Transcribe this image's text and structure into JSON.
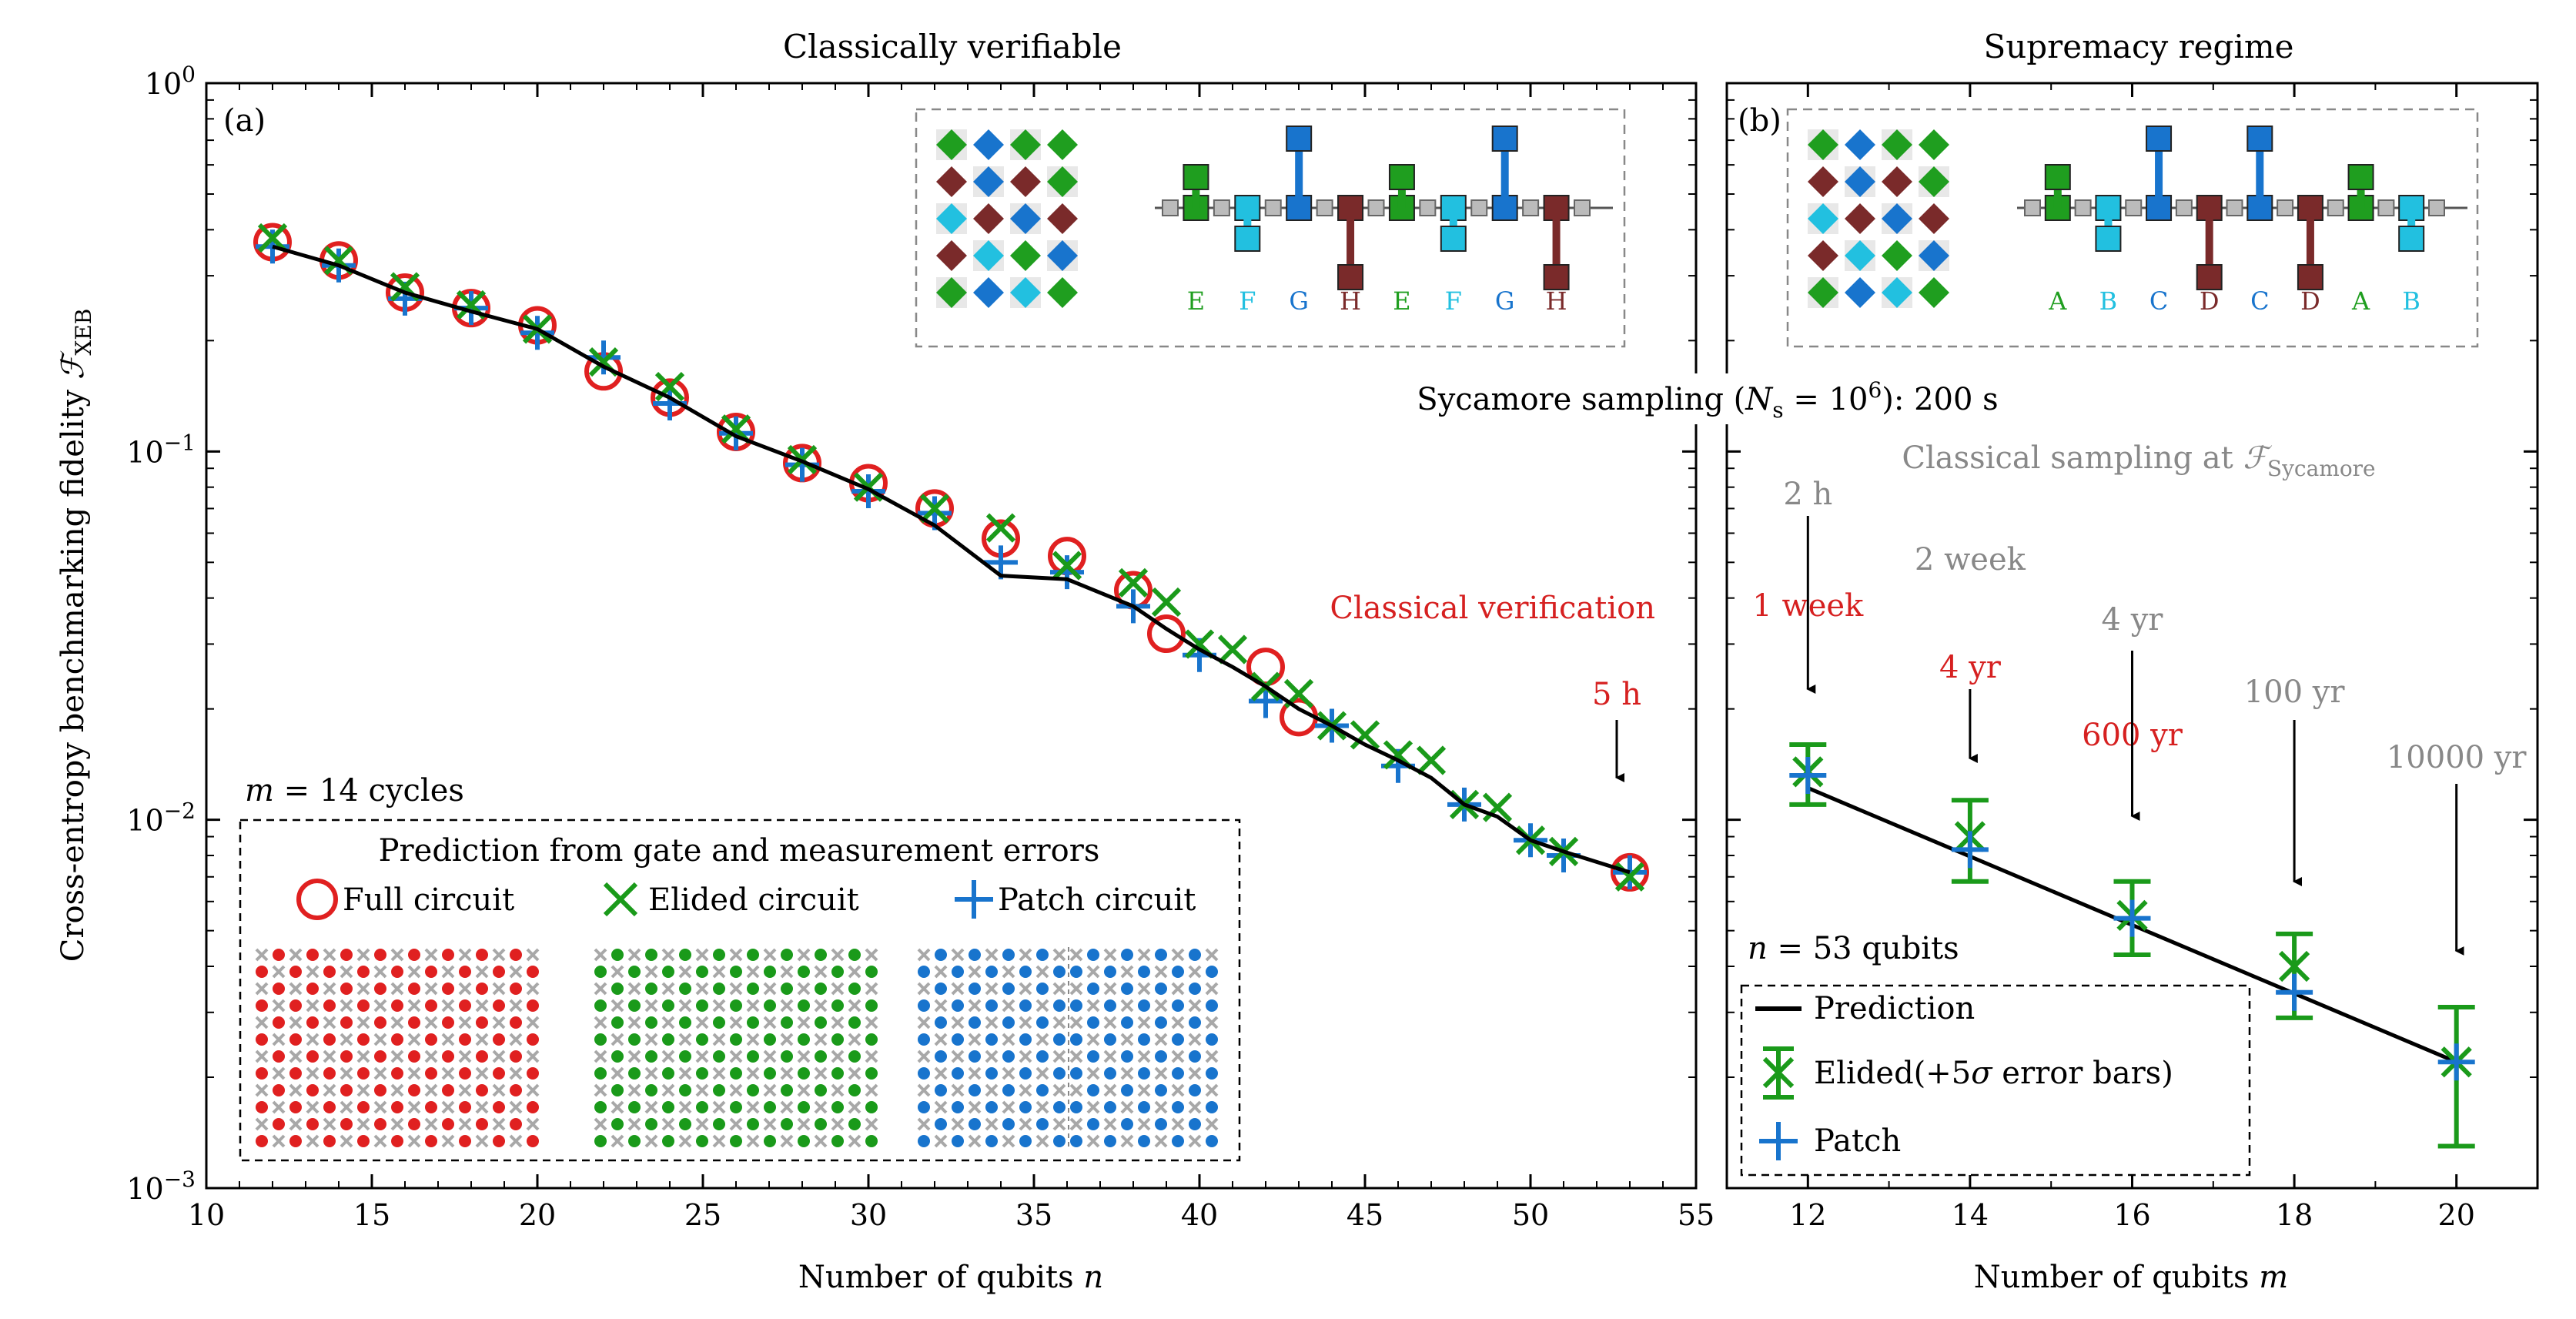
{
  "panel_a": {
    "title": "Classically verifiable",
    "label": "(a)",
    "xlabel": "Number of qubits n",
    "ylabel": "Cross-entropy benchmarking fidelity F_XEB",
    "cycles_label": "m = 14 cycles",
    "classical_verification_label": "Classical verification",
    "verification_time": "5 h",
    "legend_title": "Prediction from gate and measurement errors",
    "legend_full": "Full circuit",
    "legend_elided": "Elided circuit",
    "legend_patch": "Patch circuit",
    "inset_letters": [
      "E",
      "F",
      "G",
      "H",
      "E",
      "F",
      "G",
      "H"
    ]
  },
  "panel_b": {
    "title": "Supremacy regime",
    "label": "(b)",
    "xlabel": "Number of qubits m",
    "qubits_label": "n = 53 qubits",
    "sycamore_sampling": "Sycamore sampling (N_s = 10^6): 200 s",
    "classical_sampling": "Classical sampling at F_Sycamore",
    "legend_prediction": "Prediction",
    "legend_elided": "Elided(+5σ error bars)",
    "legend_patch": "Patch",
    "inset_letters": [
      "A",
      "B",
      "C",
      "D",
      "C",
      "D",
      "A",
      "B"
    ],
    "time_labels": [
      {
        "grey": "2 h",
        "red": "1 week"
      },
      {
        "grey": "2 week",
        "red": "4 yr"
      },
      {
        "grey": "4 yr",
        "red": "600 yr"
      },
      {
        "grey": "100 yr",
        "red": ""
      },
      {
        "grey": "10000 yr",
        "red": ""
      }
    ]
  },
  "colors": {
    "full": "#e02020",
    "elided": "#1a9a1a",
    "patch": "#1874cd",
    "prediction": "#000000",
    "red_text": "#d62020",
    "grey_text": "#888888"
  },
  "chart_data": [
    {
      "type": "scatter",
      "title": "Classically verifiable",
      "xlabel": "Number of qubits n",
      "ylabel": "Cross-entropy benchmarking fidelity F_XEB",
      "xlim": [
        10,
        55
      ],
      "ylim": [
        0.001,
        1
      ],
      "yscale": "log",
      "xticks": [
        10,
        15,
        20,
        25,
        30,
        35,
        40,
        45,
        50,
        55
      ],
      "yticks": [
        "10^-3",
        "10^-2",
        "10^-1",
        "10^0"
      ],
      "series": [
        {
          "name": "Prediction",
          "style": "line",
          "x": [
            12,
            14,
            16,
            18,
            20,
            22,
            24,
            26,
            28,
            30,
            32,
            34,
            36,
            38,
            39,
            40,
            41,
            42,
            43,
            44,
            45,
            46,
            47,
            48,
            49,
            50,
            51,
            53
          ],
          "y": [
            0.36,
            0.32,
            0.27,
            0.24,
            0.215,
            0.17,
            0.14,
            0.11,
            0.094,
            0.079,
            0.063,
            0.046,
            0.045,
            0.038,
            0.033,
            0.029,
            0.026,
            0.023,
            0.02,
            0.018,
            0.016,
            0.0145,
            0.013,
            0.011,
            0.0102,
            0.0088,
            0.0082,
            0.0072
          ]
        },
        {
          "name": "Full circuit",
          "style": "circle",
          "x": [
            12,
            14,
            16,
            18,
            20,
            22,
            24,
            26,
            28,
            30,
            32,
            34,
            36,
            38,
            39,
            42,
            43,
            53
          ],
          "y": [
            0.37,
            0.33,
            0.27,
            0.245,
            0.22,
            0.165,
            0.14,
            0.113,
            0.093,
            0.082,
            0.07,
            0.058,
            0.052,
            0.042,
            0.032,
            0.026,
            0.019,
            0.0072
          ]
        },
        {
          "name": "Elided circuit",
          "style": "x",
          "x": [
            12,
            14,
            16,
            18,
            20,
            22,
            24,
            26,
            28,
            30,
            32,
            34,
            36,
            38,
            39,
            40,
            41,
            42,
            43,
            44,
            45,
            46,
            47,
            48,
            49,
            50,
            51,
            53
          ],
          "y": [
            0.38,
            0.33,
            0.28,
            0.25,
            0.215,
            0.175,
            0.15,
            0.115,
            0.095,
            0.08,
            0.07,
            0.062,
            0.049,
            0.044,
            0.039,
            0.03,
            0.029,
            0.023,
            0.022,
            0.018,
            0.017,
            0.015,
            0.0145,
            0.011,
            0.0108,
            0.0088,
            0.0082,
            0.007
          ]
        },
        {
          "name": "Patch circuit",
          "style": "plus",
          "x": [
            12,
            14,
            16,
            18,
            20,
            22,
            24,
            26,
            28,
            30,
            32,
            34,
            36,
            38,
            40,
            42,
            44,
            46,
            48,
            50,
            51,
            53
          ],
          "y": [
            0.36,
            0.32,
            0.26,
            0.245,
            0.21,
            0.18,
            0.135,
            0.112,
            0.092,
            0.078,
            0.068,
            0.05,
            0.047,
            0.038,
            0.028,
            0.021,
            0.018,
            0.014,
            0.011,
            0.0088,
            0.008,
            0.0072
          ]
        }
      ],
      "annotations": [
        "m = 14 cycles",
        "Classical verification",
        "5 h"
      ],
      "legend": "lower-left"
    },
    {
      "type": "scatter",
      "title": "Supremacy regime",
      "xlabel": "Number of qubits m",
      "xlim": [
        11,
        21
      ],
      "ylim": [
        0.001,
        1
      ],
      "yscale": "log",
      "xticks": [
        12,
        14,
        16,
        18,
        20
      ],
      "series": [
        {
          "name": "Prediction",
          "style": "line",
          "x": [
            12,
            20
          ],
          "y": [
            0.0122,
            0.0022
          ]
        },
        {
          "name": "Elided(+5σ error bars)",
          "style": "x-errorbar",
          "x": [
            12,
            14,
            16,
            18,
            20
          ],
          "y": [
            0.0135,
            0.009,
            0.0055,
            0.004,
            0.0022
          ],
          "yerr_low": [
            0.011,
            0.0068,
            0.0043,
            0.0029,
            0.0013
          ],
          "yerr_high": [
            0.016,
            0.0113,
            0.0068,
            0.0049,
            0.0031
          ]
        },
        {
          "name": "Patch",
          "style": "plus",
          "x": [
            12,
            14,
            16,
            18,
            20
          ],
          "y": [
            0.0132,
            0.0083,
            0.0054,
            0.0034,
            0.0022
          ]
        }
      ],
      "annotations": [
        "n = 53 qubits",
        "2 h",
        "1 week",
        "2 week",
        "4 yr",
        "600 yr",
        "100 yr",
        "10000 yr"
      ],
      "legend": "lower-left"
    }
  ]
}
